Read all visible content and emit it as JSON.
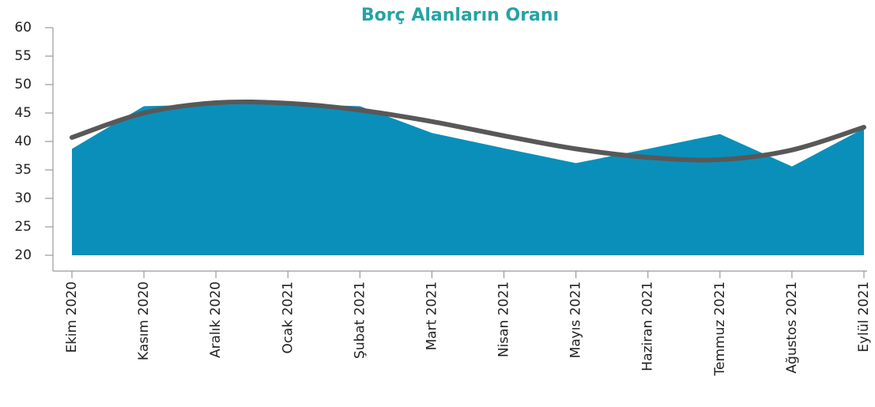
{
  "chart_data": {
    "type": "area",
    "title": "Borç Alanların Oranı",
    "categories": [
      "Ekim 2020",
      "Kasım 2020",
      "Aralık 2020",
      "Ocak 2021",
      "Şubat 2021",
      "Mart 2021",
      "Nisan 2021",
      "Mayıs 2021",
      "Haziran 2021",
      "Temmuz 2021",
      "Ağustos 2021",
      "Eylül 2021"
    ],
    "series": [
      {
        "type": "area",
        "color": "#0a8fba",
        "values": [
          38.7,
          46.2,
          46.5,
          46.6,
          46.2,
          41.5,
          38.8,
          36.2,
          38.7,
          41.3,
          35.6,
          42.3
        ]
      },
      {
        "type": "line",
        "smooth": true,
        "color": "#585858",
        "values": [
          40.7,
          45.0,
          46.8,
          46.7,
          45.5,
          43.5,
          41.0,
          38.7,
          37.2,
          36.8,
          38.5,
          42.5
        ]
      }
    ],
    "ylim": [
      20,
      60
    ],
    "yticks": [
      20,
      25,
      30,
      35,
      40,
      45,
      50,
      55,
      60
    ],
    "grid": false
  }
}
